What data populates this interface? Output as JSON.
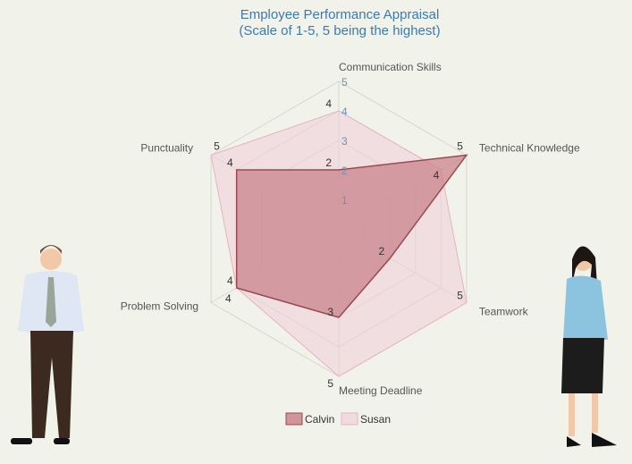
{
  "chart_data": {
    "type": "radar",
    "title": "Employee Performance Appraisal",
    "subtitle": "(Scale of 1-5, 5 being the highest)",
    "axes": [
      "Communication Skills",
      "Technical Knowledge",
      "Teamwork",
      "Meeting Deadline",
      "Problem Solving",
      "Punctuality"
    ],
    "scale_ticks": [
      "1",
      "2",
      "3",
      "4",
      "5"
    ],
    "range": [
      0,
      5
    ],
    "series": [
      {
        "name": "Calvin",
        "values": [
          2,
          5,
          2,
          3,
          4,
          4
        ],
        "fill": "#c9848c",
        "stroke": "#9b4a52"
      },
      {
        "name": "Susan",
        "values": [
          4,
          4,
          5,
          5,
          4,
          5
        ],
        "fill": "#f0d0d8",
        "stroke": "#e4b4c0"
      }
    ],
    "legend_position": "bottom"
  }
}
